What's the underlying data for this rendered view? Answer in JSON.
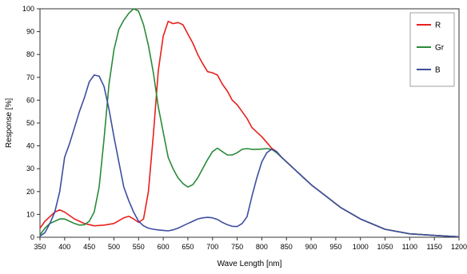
{
  "chart_data": {
    "type": "line",
    "title": "",
    "xlabel": "Wave Length [nm]",
    "ylabel": "Response  [%]",
    "xlim": [
      350,
      1200
    ],
    "ylim": [
      0,
      100
    ],
    "xticks": [
      350,
      400,
      450,
      500,
      550,
      600,
      650,
      700,
      750,
      800,
      850,
      900,
      950,
      1000,
      1050,
      1100,
      1150,
      1200
    ],
    "yticks": [
      0,
      10,
      20,
      30,
      40,
      50,
      60,
      70,
      80,
      90,
      100
    ],
    "grid": false,
    "legend": "top-right",
    "series": [
      {
        "name": "R",
        "color": "#e8201c",
        "points": [
          [
            350,
            4
          ],
          [
            360,
            7
          ],
          [
            370,
            9
          ],
          [
            380,
            11
          ],
          [
            390,
            12
          ],
          [
            400,
            11
          ],
          [
            420,
            8
          ],
          [
            440,
            6
          ],
          [
            460,
            5
          ],
          [
            480,
            5.3
          ],
          [
            500,
            6
          ],
          [
            520,
            8.5
          ],
          [
            530,
            9.2
          ],
          [
            540,
            8
          ],
          [
            550,
            6.5
          ],
          [
            560,
            8
          ],
          [
            570,
            20
          ],
          [
            580,
            45
          ],
          [
            590,
            73
          ],
          [
            600,
            88
          ],
          [
            610,
            94.5
          ],
          [
            620,
            93.5
          ],
          [
            630,
            94
          ],
          [
            640,
            93
          ],
          [
            650,
            89
          ],
          [
            660,
            85
          ],
          [
            670,
            80
          ],
          [
            680,
            76
          ],
          [
            690,
            72.5
          ],
          [
            700,
            72
          ],
          [
            710,
            71
          ],
          [
            720,
            67
          ],
          [
            730,
            64
          ],
          [
            740,
            60
          ],
          [
            750,
            58
          ],
          [
            760,
            55
          ],
          [
            770,
            52
          ],
          [
            780,
            48
          ],
          [
            790,
            46
          ],
          [
            800,
            44
          ],
          [
            810,
            41.5
          ],
          [
            820,
            39
          ],
          [
            830,
            37.5
          ],
          [
            840,
            35
          ],
          [
            850,
            33
          ],
          [
            870,
            29
          ],
          [
            900,
            23
          ],
          [
            930,
            18
          ],
          [
            960,
            13
          ],
          [
            1000,
            8
          ],
          [
            1050,
            3.5
          ],
          [
            1100,
            1.5
          ],
          [
            1150,
            0.8
          ],
          [
            1200,
            0.2
          ]
        ]
      },
      {
        "name": "Gr",
        "color": "#2a8a3a",
        "points": [
          [
            350,
            1
          ],
          [
            360,
            4
          ],
          [
            370,
            6
          ],
          [
            380,
            7
          ],
          [
            390,
            8
          ],
          [
            400,
            8
          ],
          [
            410,
            7
          ],
          [
            420,
            6
          ],
          [
            430,
            5.3
          ],
          [
            440,
            5.5
          ],
          [
            450,
            7
          ],
          [
            460,
            11
          ],
          [
            470,
            22
          ],
          [
            480,
            43
          ],
          [
            490,
            67
          ],
          [
            500,
            82
          ],
          [
            510,
            91
          ],
          [
            520,
            95
          ],
          [
            530,
            98
          ],
          [
            540,
            100
          ],
          [
            550,
            99
          ],
          [
            560,
            93
          ],
          [
            570,
            84
          ],
          [
            580,
            72
          ],
          [
            590,
            57
          ],
          [
            600,
            46
          ],
          [
            610,
            35
          ],
          [
            620,
            30
          ],
          [
            630,
            26
          ],
          [
            640,
            23.5
          ],
          [
            650,
            22
          ],
          [
            660,
            23
          ],
          [
            670,
            26
          ],
          [
            680,
            30
          ],
          [
            690,
            34
          ],
          [
            700,
            37.5
          ],
          [
            710,
            39
          ],
          [
            720,
            37.5
          ],
          [
            730,
            36
          ],
          [
            740,
            36
          ],
          [
            750,
            37
          ],
          [
            760,
            38.5
          ],
          [
            770,
            38.8
          ],
          [
            780,
            38.5
          ],
          [
            790,
            38.5
          ],
          [
            800,
            38.6
          ],
          [
            810,
            38.8
          ],
          [
            820,
            38.5
          ],
          [
            830,
            37
          ],
          [
            840,
            35
          ],
          [
            850,
            33
          ],
          [
            870,
            29
          ],
          [
            900,
            23
          ],
          [
            930,
            18
          ],
          [
            960,
            13
          ],
          [
            1000,
            8
          ],
          [
            1050,
            3.5
          ],
          [
            1100,
            1.5
          ],
          [
            1150,
            0.8
          ],
          [
            1200,
            0.2
          ]
        ]
      },
      {
        "name": "B",
        "color": "#3d4fa0",
        "points": [
          [
            350,
            0.5
          ],
          [
            360,
            2
          ],
          [
            370,
            6
          ],
          [
            380,
            11
          ],
          [
            390,
            20
          ],
          [
            400,
            35
          ],
          [
            410,
            41
          ],
          [
            420,
            48
          ],
          [
            430,
            55
          ],
          [
            440,
            61
          ],
          [
            450,
            68
          ],
          [
            460,
            71
          ],
          [
            470,
            70.5
          ],
          [
            480,
            66
          ],
          [
            490,
            56
          ],
          [
            500,
            44
          ],
          [
            510,
            33
          ],
          [
            520,
            22
          ],
          [
            530,
            16
          ],
          [
            540,
            11
          ],
          [
            550,
            7
          ],
          [
            560,
            5
          ],
          [
            570,
            4
          ],
          [
            580,
            3.5
          ],
          [
            590,
            3.2
          ],
          [
            600,
            3
          ],
          [
            610,
            2.8
          ],
          [
            620,
            3.2
          ],
          [
            630,
            4
          ],
          [
            640,
            5
          ],
          [
            650,
            6
          ],
          [
            660,
            7
          ],
          [
            670,
            8
          ],
          [
            680,
            8.5
          ],
          [
            690,
            8.7
          ],
          [
            700,
            8.5
          ],
          [
            710,
            7.8
          ],
          [
            720,
            6.5
          ],
          [
            730,
            5.5
          ],
          [
            740,
            4.8
          ],
          [
            750,
            4.7
          ],
          [
            760,
            6
          ],
          [
            770,
            9
          ],
          [
            780,
            18
          ],
          [
            790,
            26
          ],
          [
            800,
            33
          ],
          [
            810,
            37
          ],
          [
            820,
            38.5
          ],
          [
            830,
            37.5
          ],
          [
            840,
            35
          ],
          [
            850,
            33
          ],
          [
            870,
            29
          ],
          [
            900,
            23
          ],
          [
            930,
            18
          ],
          [
            960,
            13
          ],
          [
            1000,
            8
          ],
          [
            1050,
            3.5
          ],
          [
            1100,
            1.5
          ],
          [
            1150,
            0.8
          ],
          [
            1200,
            0.2
          ]
        ]
      }
    ]
  }
}
